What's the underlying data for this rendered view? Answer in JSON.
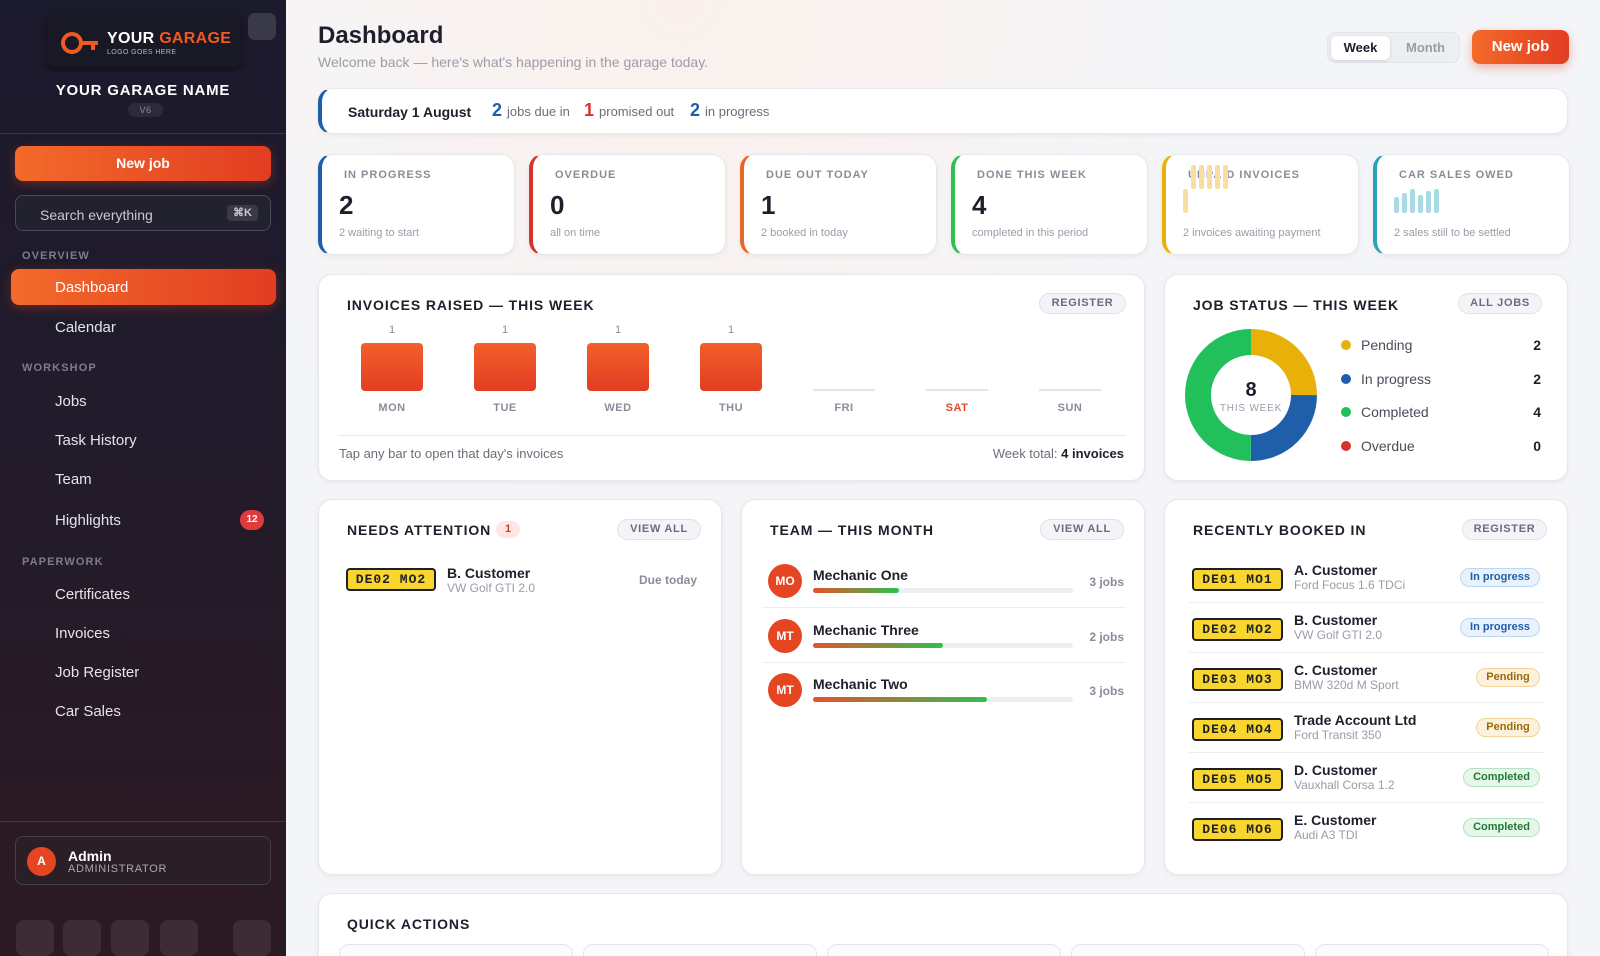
{
  "sidebar": {
    "logo": {
      "brand_a": "YOUR",
      "brand_b": "GARAGE",
      "tagline": "LOGO GOES HERE"
    },
    "garage_name": "YOUR GARAGE NAME",
    "version": "V6",
    "new_job": "New job",
    "search": {
      "placeholder": "Search everything",
      "shortcut": "⌘K"
    },
    "sections": [
      {
        "title": "OVERVIEW",
        "items": [
          {
            "label": "Dashboard",
            "active": true
          },
          {
            "label": "Calendar"
          }
        ]
      },
      {
        "title": "WORKSHOP",
        "items": [
          {
            "label": "Jobs"
          },
          {
            "label": "Task History"
          },
          {
            "label": "Team"
          },
          {
            "label": "Highlights",
            "badge": "12"
          }
        ]
      },
      {
        "title": "PAPERWORK",
        "items": [
          {
            "label": "Certificates"
          },
          {
            "label": "Invoices"
          },
          {
            "label": "Job Register"
          },
          {
            "label": "Car Sales"
          }
        ]
      }
    ],
    "user": {
      "initial": "A",
      "name": "Admin",
      "role": "ADMINISTRATOR"
    }
  },
  "header": {
    "title": "Dashboard",
    "subtitle": "Welcome back — here's what's happening in the garage today.",
    "period_toggle": [
      "Week",
      "Month"
    ],
    "period_selected": "Week",
    "new_job": "New job"
  },
  "today_bar": {
    "date": "Saturday 1 August",
    "due_in": {
      "value": "2",
      "label": "jobs due in"
    },
    "promised_out": {
      "value": "1",
      "label": "promised out"
    },
    "in_progress": {
      "value": "2",
      "label": "in progress"
    }
  },
  "kpis": [
    {
      "label": "IN PROGRESS",
      "value": "2",
      "sub": "2 waiting to start",
      "color": "#1f5ea8"
    },
    {
      "label": "OVERDUE",
      "value": "0",
      "sub": "all on time",
      "color": "#d8322c"
    },
    {
      "label": "DUE OUT TODAY",
      "value": "1",
      "sub": "2 booked in today",
      "color": "#e8662a"
    },
    {
      "label": "DONE THIS WEEK",
      "value": "4",
      "sub": "completed in this period",
      "color": "#2fbf4f"
    },
    {
      "label": "UNPAID INVOICES",
      "sub": "2 invoices awaiting payment",
      "color": "#e7b10a"
    },
    {
      "label": "CAR SALES OWED",
      "sub": "2 sales still to be settled",
      "color": "#2aa3b8"
    }
  ],
  "invoices_panel": {
    "title": "INVOICES RAISED — THIS WEEK",
    "button": "REGISTER",
    "hint": "Tap any bar to open that day's invoices",
    "week_total_label": "Week total:",
    "week_total_value": "4 invoices",
    "highlight_day": "SAT",
    "accent_color": "#e8442a"
  },
  "chart_data": {
    "type": "bar",
    "categories": [
      "MON",
      "TUE",
      "WED",
      "THU",
      "FRI",
      "SAT",
      "SUN"
    ],
    "values": [
      1,
      1,
      1,
      1,
      0,
      0,
      0
    ],
    "data_labels": [
      "1",
      "1",
      "1",
      "1",
      "",
      "",
      ""
    ],
    "title": "INVOICES RAISED — THIS WEEK"
  },
  "job_status": {
    "title": "JOB STATUS — THIS WEEK",
    "button": "ALL JOBS",
    "total": "8",
    "total_label": "THIS WEEK",
    "items": [
      {
        "name": "Pending",
        "value": 2,
        "color": "#e7b10a"
      },
      {
        "name": "In progress",
        "value": 2,
        "color": "#1f5ea8"
      },
      {
        "name": "Completed",
        "value": 4,
        "color": "#22c05a"
      },
      {
        "name": "Overdue",
        "value": 0,
        "color": "#d8322c"
      }
    ]
  },
  "attention": {
    "title": "NEEDS ATTENTION",
    "count": "1",
    "button": "VIEW ALL",
    "rows": [
      {
        "plate": "DE02 MO2",
        "customer": "B. Customer",
        "vehicle": "VW Golf GTI 2.0",
        "due": "Due today"
      }
    ]
  },
  "team": {
    "title": "TEAM — THIS MONTH",
    "button": "VIEW ALL",
    "members": [
      {
        "initials": "MO",
        "name": "Mechanic One",
        "jobs": "3 jobs",
        "progress": 0.33
      },
      {
        "initials": "MT",
        "name": "Mechanic Three",
        "jobs": "2 jobs",
        "progress": 0.5
      },
      {
        "initials": "MT",
        "name": "Mechanic Two",
        "jobs": "3 jobs",
        "progress": 0.67
      }
    ]
  },
  "recent": {
    "title": "RECENTLY BOOKED IN",
    "button": "REGISTER",
    "rows": [
      {
        "plate": "DE01 MO1",
        "customer": "A. Customer",
        "vehicle": "Ford Focus 1.6 TDCi",
        "status": "In progress",
        "kind": "prog"
      },
      {
        "plate": "DE02 MO2",
        "customer": "B. Customer",
        "vehicle": "VW Golf GTI 2.0",
        "status": "In progress",
        "kind": "prog"
      },
      {
        "plate": "DE03 MO3",
        "customer": "C. Customer",
        "vehicle": "BMW 320d M Sport",
        "status": "Pending",
        "kind": "pend"
      },
      {
        "plate": "DE04 MO4",
        "customer": "Trade Account Ltd",
        "vehicle": "Ford Transit 350",
        "status": "Pending",
        "kind": "pend"
      },
      {
        "plate": "DE05 MO5",
        "customer": "D. Customer",
        "vehicle": "Vauxhall Corsa 1.2",
        "status": "Completed",
        "kind": "comp"
      },
      {
        "plate": "DE06 MO6",
        "customer": "E. Customer",
        "vehicle": "Audi A3 TDI",
        "status": "Completed",
        "kind": "comp"
      }
    ]
  },
  "quick_actions": {
    "title": "QUICK ACTIONS"
  }
}
